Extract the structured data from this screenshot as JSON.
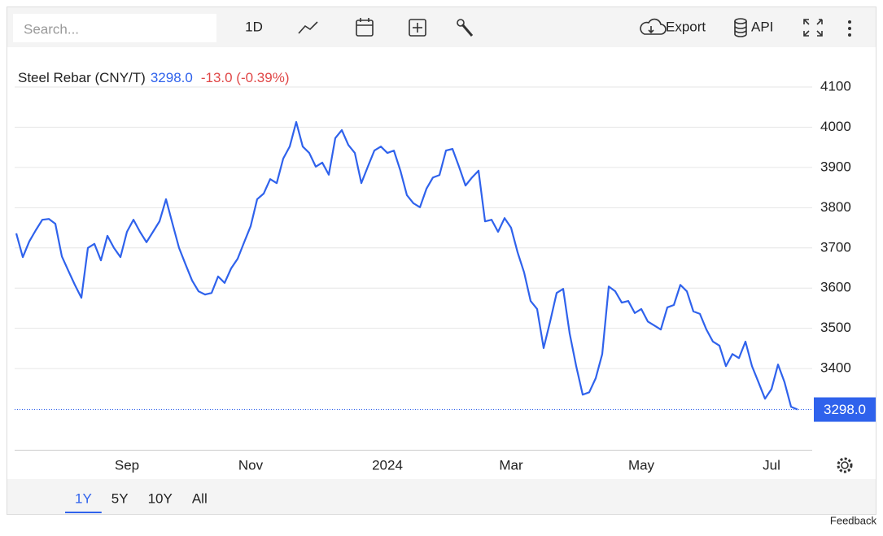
{
  "ui": {
    "search": "Search...",
    "interval": "1D",
    "export": "Export",
    "api": "API",
    "ranges": [
      "1Y",
      "5Y",
      "10Y",
      "All"
    ],
    "feedback": "Feedback"
  },
  "chart_data": {
    "type": "line",
    "title": "Steel Rebar (CNY/T)",
    "price": "3298.0",
    "change": "-13.0 (-0.39%)",
    "categories": [
      null,
      null,
      null,
      null,
      null,
      null,
      null,
      null,
      null,
      null,
      null,
      null,
      null,
      null,
      null,
      null,
      null,
      "Sep",
      null,
      null,
      null,
      null,
      null,
      null,
      null,
      null,
      null,
      null,
      null,
      null,
      null,
      null,
      null,
      null,
      null,
      null,
      "Nov",
      null,
      null,
      null,
      null,
      null,
      null,
      null,
      null,
      null,
      null,
      null,
      null,
      null,
      null,
      null,
      null,
      null,
      null,
      null,
      null,
      "2024",
      null,
      null,
      null,
      null,
      null,
      null,
      null,
      null,
      null,
      null,
      null,
      null,
      null,
      null,
      null,
      null,
      null,
      null,
      "Mar",
      null,
      null,
      null,
      null,
      null,
      null,
      null,
      null,
      null,
      null,
      null,
      null,
      null,
      null,
      null,
      null,
      null,
      null,
      null,
      "May",
      null,
      null,
      null,
      null,
      null,
      null,
      null,
      null,
      null,
      null,
      null,
      null,
      null,
      null,
      null,
      null,
      null,
      null,
      null,
      "Jul",
      null,
      null,
      null,
      null
    ],
    "series": [
      {
        "name": "Steel Rebar (CNY/T)",
        "color": "#2f62ec",
        "values": [
          3736,
          3677,
          3716,
          3744,
          3770,
          3772,
          3760,
          3679,
          3643,
          3608,
          3576,
          3700,
          3710,
          3669,
          3730,
          3700,
          3677,
          3740,
          3770,
          3740,
          3714,
          3740,
          3766,
          3821,
          3760,
          3700,
          3659,
          3619,
          3592,
          3584,
          3588,
          3629,
          3613,
          3649,
          3673,
          3714,
          3754,
          3821,
          3835,
          3871,
          3861,
          3922,
          3952,
          4013,
          3952,
          3936,
          3902,
          3912,
          3882,
          3973,
          3993,
          3956,
          3936,
          3861,
          3902,
          3942,
          3952,
          3936,
          3942,
          3892,
          3831,
          3811,
          3801,
          3847,
          3875,
          3881,
          3942,
          3946,
          3902,
          3855,
          3875,
          3892,
          3766,
          3770,
          3740,
          3774,
          3750,
          3689,
          3639,
          3568,
          3548,
          3451,
          3517,
          3588,
          3598,
          3487,
          3406,
          3335,
          3341,
          3376,
          3436,
          3604,
          3592,
          3564,
          3568,
          3538,
          3548,
          3517,
          3507,
          3497,
          3552,
          3558,
          3608,
          3592,
          3542,
          3536,
          3497,
          3467,
          3457,
          3406,
          3436,
          3426,
          3467,
          3406,
          3366,
          3325,
          3349,
          3410,
          3366,
          3305,
          3298
        ]
      }
    ],
    "ylim": [
      3198,
      4195
    ],
    "yticks": [
      3400,
      3500,
      3600,
      3700,
      3800,
      3900,
      4000,
      4100
    ],
    "grid": true
  }
}
